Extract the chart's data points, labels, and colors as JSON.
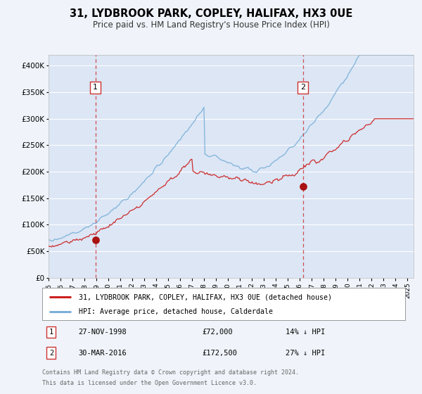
{
  "title": "31, LYDBROOK PARK, COPLEY, HALIFAX, HX3 0UE",
  "subtitle": "Price paid vs. HM Land Registry's House Price Index (HPI)",
  "background_color": "#f0f4fa",
  "plot_bg_color": "#dce6f5",
  "grid_color": "#ffffff",
  "ylim": [
    0,
    420000
  ],
  "yticks": [
    0,
    50000,
    100000,
    150000,
    200000,
    250000,
    300000,
    350000,
    400000
  ],
  "ytick_labels": [
    "£0",
    "£50K",
    "£100K",
    "£150K",
    "£200K",
    "£250K",
    "£300K",
    "£350K",
    "£400K"
  ],
  "xmin": 1995.0,
  "xmax": 2025.5,
  "sale1_date": 1998.91,
  "sale1_price": 72000,
  "sale2_date": 2016.25,
  "sale2_price": 172500,
  "hpi_color": "#7ab0d8",
  "price_color": "#cc2222",
  "marker_color": "#aa1111",
  "vline_color": "#cc3333",
  "legend_line1": "31, LYDBROOK PARK, COPLEY, HALIFAX, HX3 0UE (detached house)",
  "legend_line2": "HPI: Average price, detached house, Calderdale",
  "annotation1_label": "1",
  "annotation1_date": "27-NOV-1998",
  "annotation1_price": "£72,000",
  "annotation1_hpi": "14% ↓ HPI",
  "annotation2_label": "2",
  "annotation2_date": "30-MAR-2016",
  "annotation2_price": "£172,500",
  "annotation2_hpi": "27% ↓ HPI",
  "footer1": "Contains HM Land Registry data © Crown copyright and database right 2024.",
  "footer2": "This data is licensed under the Open Government Licence v3.0."
}
